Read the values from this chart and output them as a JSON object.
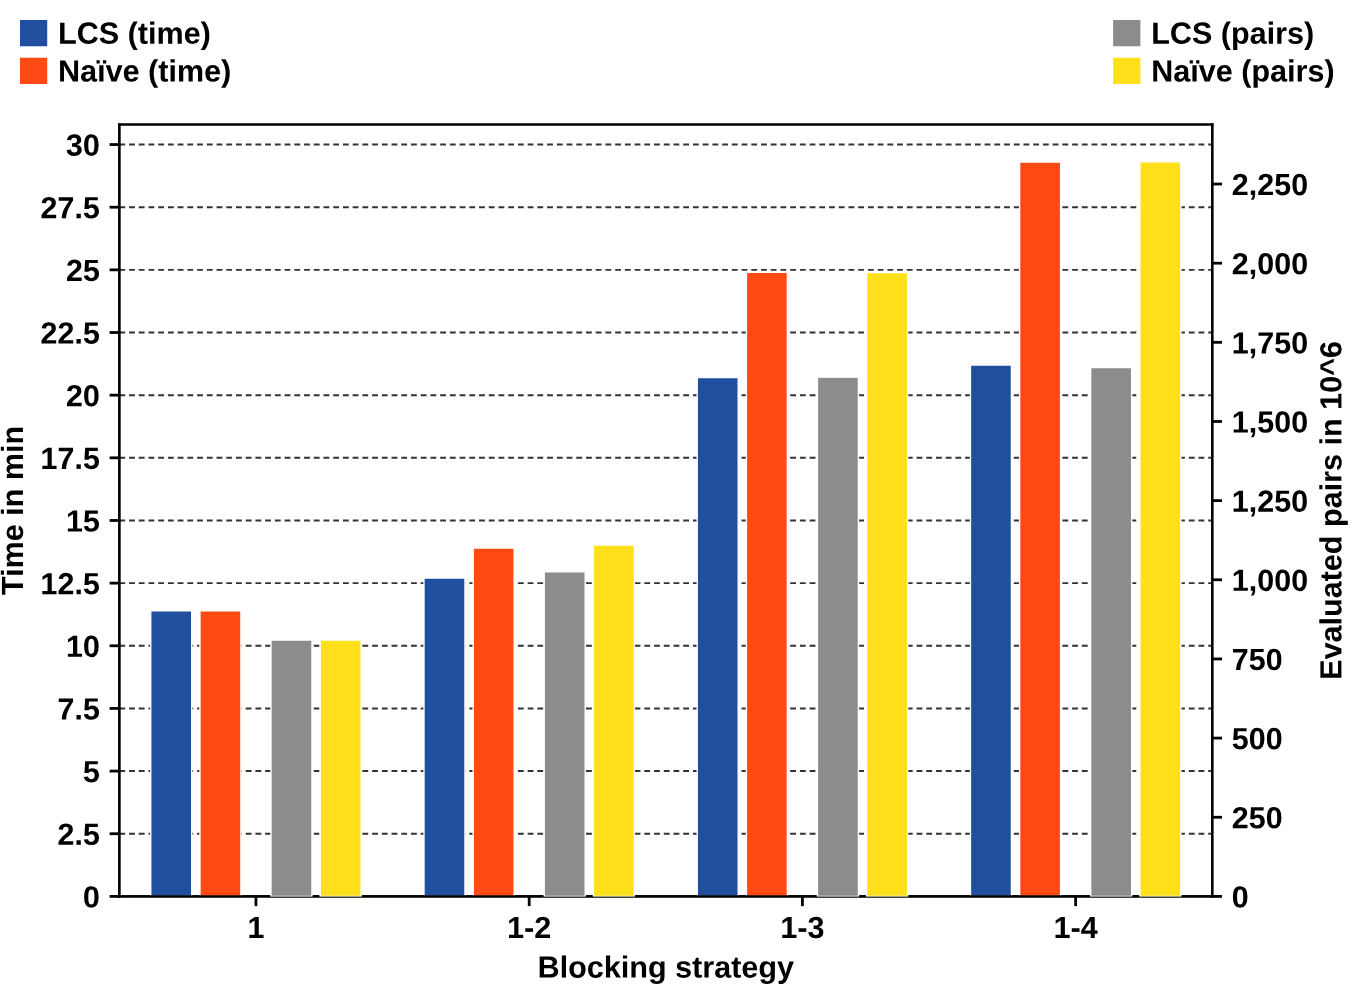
{
  "chart_data": {
    "type": "bar",
    "xlabel": "Blocking strategy",
    "ylabel": "Time in min",
    "y2label": "Evaluated pairs in 10^6",
    "categories": [
      "1",
      "1-2",
      "1-3",
      "1-4"
    ],
    "series": [
      {
        "name": "LCS (time)",
        "color": "#1f4f9e",
        "values": [
          11.4,
          12.7,
          20.7,
          21.2
        ]
      },
      {
        "name": "Naïve (time)",
        "color": "#ff4a14",
        "values": [
          11.4,
          13.9,
          24.9,
          29.3
        ]
      },
      {
        "name": "LCS (pairs)",
        "color": "#8c8c8c",
        "axis": "y2",
        "values": [
          810,
          1025,
          1640,
          1670
        ]
      },
      {
        "name": "Naïve (pairs)",
        "color": "#ffe01a",
        "axis": "y2",
        "values": [
          810,
          1110,
          1970,
          2320
        ]
      }
    ],
    "ylim": [
      0,
      30.8
    ],
    "yticks": [
      0,
      2.5,
      5,
      7.5,
      10,
      12.5,
      15,
      17.5,
      20,
      22.5,
      25,
      27.5,
      30
    ],
    "y2lim": [
      0,
      2438
    ],
    "y2ticks": [
      0,
      250,
      500,
      750,
      {
        "value": 1000,
        "label": "1,000"
      },
      {
        "value": 1250,
        "label": "1,250"
      },
      {
        "value": 1500,
        "label": "1,500"
      },
      {
        "value": 1750,
        "label": "1,750"
      },
      {
        "value": 2000,
        "label": "2,000"
      },
      {
        "value": 2250,
        "label": "2,250"
      }
    ],
    "grid": "y",
    "legend": "top"
  }
}
